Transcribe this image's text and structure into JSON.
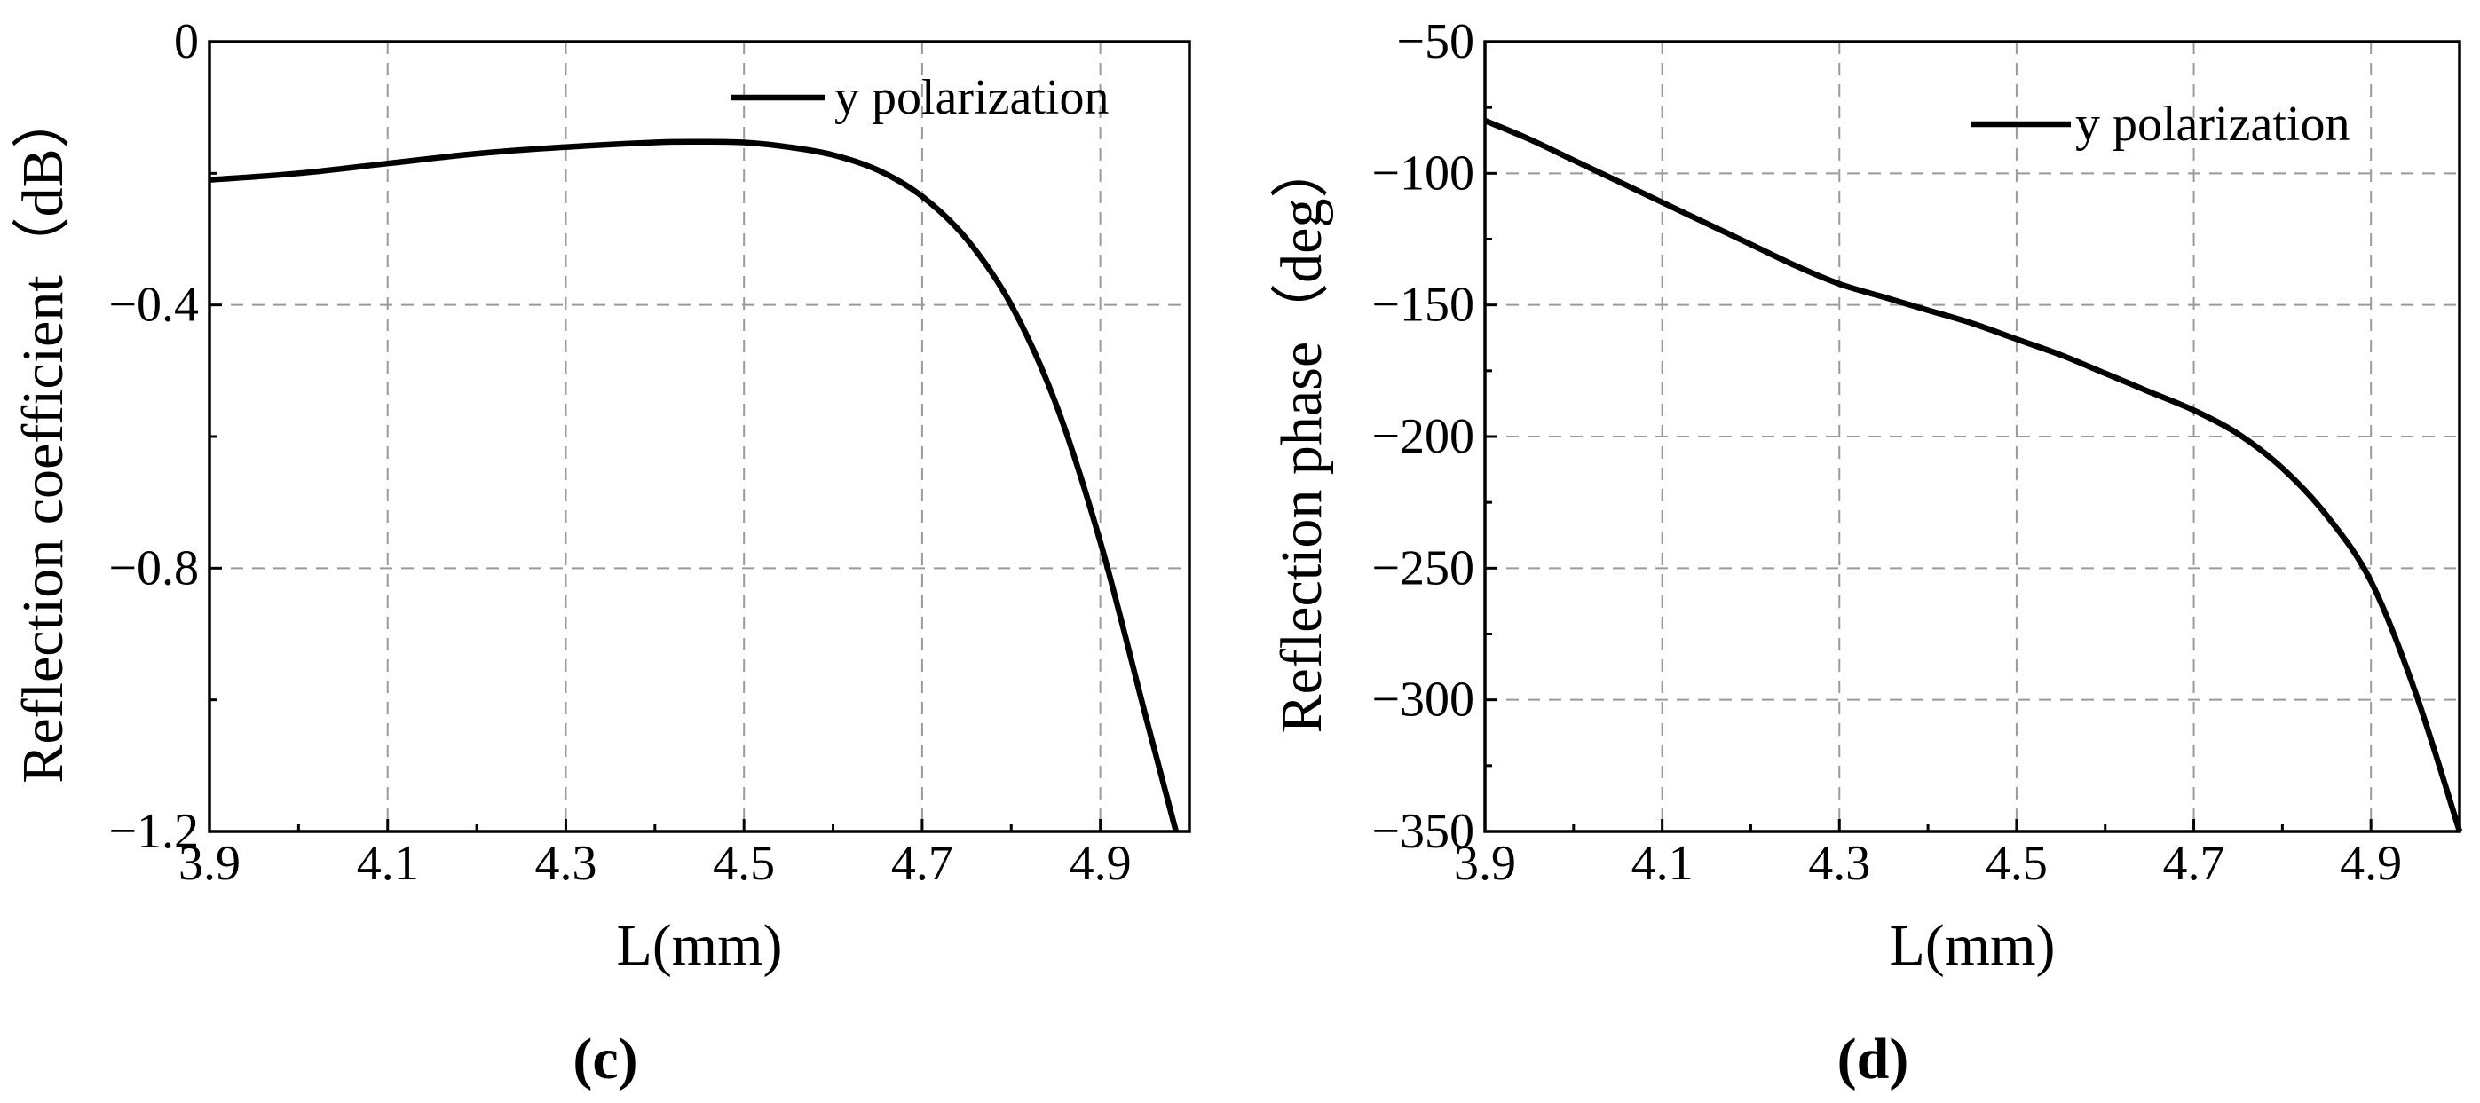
{
  "chart_data": [
    {
      "type": "line",
      "panel_label": "(c)",
      "title": "",
      "xlabel": "L(mm)",
      "ylabel": "Reflection coefficient（dB）",
      "xlim": [
        3.9,
        5.0
      ],
      "ylim": [
        -1.2,
        0
      ],
      "xticks": [
        3.9,
        4.1,
        4.3,
        4.5,
        4.7,
        4.9
      ],
      "xtick_labels": [
        "3.9",
        "4.1",
        "4.3",
        "4.5",
        "4.7",
        "4.9"
      ],
      "yticks": [
        0,
        -0.4,
        -0.8,
        -1.2
      ],
      "ytick_labels": [
        "0",
        "−0.4",
        "−0.8",
        "−1.2"
      ],
      "grid": true,
      "legend_position": "top-right",
      "series": [
        {
          "name": "y polarization",
          "color": "#000000",
          "x": [
            3.9,
            4.0,
            4.1,
            4.2,
            4.3,
            4.4,
            4.45,
            4.5,
            4.55,
            4.6,
            4.65,
            4.7,
            4.75,
            4.8,
            4.85,
            4.9,
            4.95,
            4.985
          ],
          "y": [
            -0.21,
            -0.2,
            -0.185,
            -0.17,
            -0.16,
            -0.153,
            -0.152,
            -0.153,
            -0.16,
            -0.172,
            -0.195,
            -0.235,
            -0.3,
            -0.4,
            -0.55,
            -0.76,
            -1.02,
            -1.2
          ]
        }
      ]
    },
    {
      "type": "line",
      "panel_label": "(d)",
      "title": "",
      "xlabel": "L(mm)",
      "ylabel": "Reflection phase（deg）",
      "xlim": [
        3.9,
        5.0
      ],
      "ylim": [
        -350,
        -50
      ],
      "xticks": [
        3.9,
        4.1,
        4.3,
        4.5,
        4.7,
        4.9
      ],
      "xtick_labels": [
        "3.9",
        "4.1",
        "4.3",
        "4.5",
        "4.7",
        "4.9"
      ],
      "yticks": [
        -50,
        -100,
        -150,
        -200,
        -250,
        -300,
        -350
      ],
      "ytick_labels": [
        "−50",
        "−100",
        "−150",
        "−200",
        "−250",
        "−300",
        "−350"
      ],
      "grid": true,
      "legend_position": "top-right",
      "series": [
        {
          "name": "y polarization",
          "color": "#000000",
          "x": [
            3.9,
            3.95,
            4.0,
            4.05,
            4.1,
            4.15,
            4.2,
            4.25,
            4.3,
            4.35,
            4.4,
            4.45,
            4.5,
            4.55,
            4.6,
            4.65,
            4.7,
            4.75,
            4.8,
            4.85,
            4.9,
            4.95,
            5.0
          ],
          "y": [
            -80,
            -87,
            -95,
            -103,
            -111,
            -119,
            -127,
            -135,
            -142,
            -147,
            -152,
            -157,
            -163,
            -169,
            -176,
            -183,
            -190,
            -199,
            -212,
            -230,
            -255,
            -297,
            -350
          ]
        }
      ]
    }
  ]
}
